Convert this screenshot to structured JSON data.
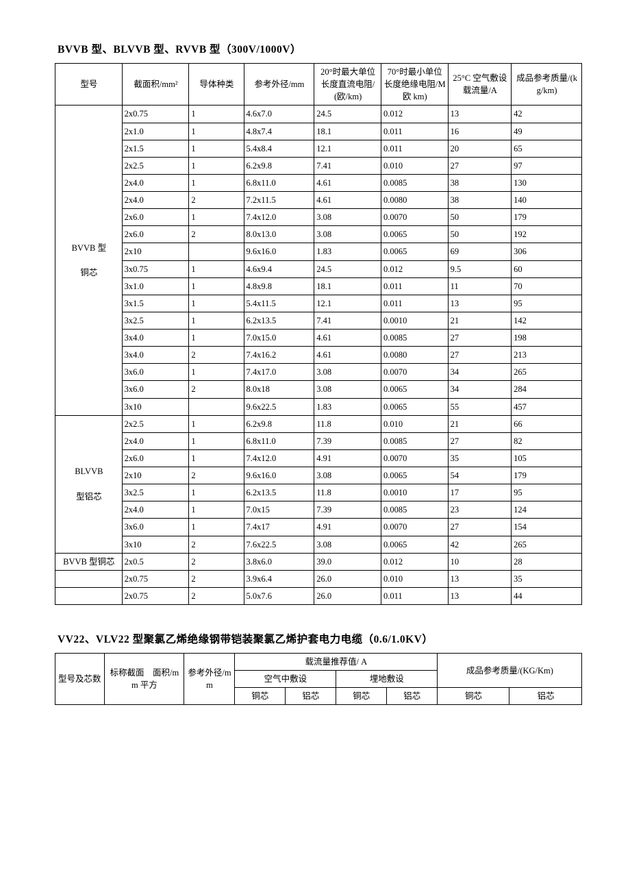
{
  "table1": {
    "title": "BVVB 型、BLVVB 型、RVVB 型（300V/1000V）",
    "headers": {
      "model": "型号",
      "area": "截面积/mm²",
      "conductor": "导体种类",
      "diameter": "参考外径/mm",
      "r20": "20°时最大单位长度直流电阻/(欧/km)",
      "r70": "70°时最小单位长度绝缘电阻/M 欧 km)",
      "ampacity": "25°C 空气敷设载流量/A",
      "mass": "成品参考质量/(kg/km)"
    },
    "groups": [
      {
        "label": "BVVB 型\n\n铜芯",
        "rows": [
          [
            "2x0.75",
            "1",
            "4.6x7.0",
            "24.5",
            "0.012",
            "13",
            "42"
          ],
          [
            "2x1.0",
            "1",
            "4.8x7.4",
            "18.1",
            "0.011",
            "16",
            "49"
          ],
          [
            "2x1.5",
            "1",
            "5.4x8.4",
            "12.1",
            "0.011",
            "20",
            "65"
          ],
          [
            "2x2.5",
            "1",
            "6.2x9.8",
            "7.41",
            "0.010",
            "27",
            "97"
          ],
          [
            "2x4.0",
            "1",
            "6.8x11.0",
            "4.61",
            "0.0085",
            "38",
            "130"
          ],
          [
            "2x4.0",
            "2",
            "7.2x11.5",
            "4.61",
            "0.0080",
            "38",
            "140"
          ],
          [
            "2x6.0",
            "1",
            "7.4x12.0",
            "3.08",
            "0.0070",
            "50",
            "179"
          ],
          [
            "2x6.0",
            "2",
            "8.0x13.0",
            "3.08",
            "0.0065",
            "50",
            "192"
          ],
          [
            "2x10",
            "",
            "9.6x16.0",
            "1.83",
            "0.0065",
            "69",
            "306"
          ],
          [
            "3x0.75",
            "1",
            "4.6x9.4",
            "24.5",
            "0.012",
            "9.5",
            "60"
          ],
          [
            "3x1.0",
            "1",
            "4.8x9.8",
            "18.1",
            "0.011",
            "11",
            "70"
          ],
          [
            "3x1.5",
            "1",
            "5.4x11.5",
            "12.1",
            "0.011",
            "13",
            "95"
          ],
          [
            "3x2.5",
            "1",
            "6.2x13.5",
            "7.41",
            "0.0010",
            "21",
            "142"
          ],
          [
            "3x4.0",
            "1",
            "7.0x15.0",
            "4.61",
            "0.0085",
            "27",
            "198"
          ],
          [
            "3x4.0",
            "2",
            "7.4x16.2",
            "4.61",
            "0.0080",
            "27",
            "213"
          ],
          [
            "3x6.0",
            "1",
            "7.4x17.0",
            "3.08",
            "0.0070",
            "34",
            "265"
          ],
          [
            "3x6.0",
            "2",
            "8.0x18",
            "3.08",
            "0.0065",
            "34",
            "284"
          ],
          [
            "3x10",
            "",
            "9.6x22.5",
            "1.83",
            "0.0065",
            "55",
            "457"
          ]
        ]
      },
      {
        "label": "BLVVB\n\n型铝芯",
        "rows": [
          [
            "2x2.5",
            "1",
            "6.2x9.8",
            "11.8",
            "0.010",
            "21",
            "66"
          ],
          [
            "2x4.0",
            "1",
            "6.8x11.0",
            "7.39",
            "0.0085",
            "27",
            "82"
          ],
          [
            "2x6.0",
            "1",
            "7.4x12.0",
            "4.91",
            "0.0070",
            "35",
            "105"
          ],
          [
            "2x10",
            "2",
            "9.6x16.0",
            "3.08",
            "0.0065",
            "54",
            "179"
          ],
          [
            "3x2.5",
            "1",
            "6.2x13.5",
            "11.8",
            "0.0010",
            "17",
            "95"
          ],
          [
            "2x4.0",
            "1",
            "7.0x15",
            "7.39",
            "0.0085",
            "23",
            "124"
          ],
          [
            "3x6.0",
            "1",
            "7.4x17",
            "4.91",
            "0.0070",
            "27",
            "154"
          ],
          [
            "3x10",
            "2",
            "7.6x22.5",
            "3.08",
            "0.0065",
            "42",
            "265"
          ]
        ]
      },
      {
        "label": "BVVB 型铜芯",
        "span": 1,
        "rows": [
          [
            "2x0.5",
            "2",
            "3.8x6.0",
            "39.0",
            "0.012",
            "10",
            "28"
          ],
          [
            "2x0.75",
            "2",
            "3.9x6.4",
            "26.0",
            "0.010",
            "13",
            "35"
          ],
          [
            "2x0.75",
            "2",
            "5.0x7.6",
            "26.0",
            "0.011",
            "13",
            "44"
          ]
        ]
      }
    ]
  },
  "table2": {
    "title": "VV22、VLV22 型聚氯乙烯绝缘钢带铠装聚氯乙烯护套电力电缆（0.6/1.0KV）",
    "headers": {
      "model": "型号及芯数",
      "area": "标称截面　面积/mm 平方",
      "diameter": "参考外径/mm",
      "ampacity": "载流量推荐值/ A",
      "air": "空气中敷设",
      "ground": "埋地敷设",
      "mass": "成品参考质量/(KG/Km)",
      "copper": "铜芯",
      "aluminum": "铝芯"
    }
  }
}
